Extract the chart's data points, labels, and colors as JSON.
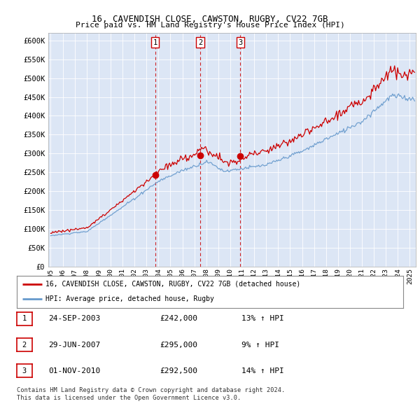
{
  "title": "16, CAVENDISH CLOSE, CAWSTON, RUGBY, CV22 7GB",
  "subtitle": "Price paid vs. HM Land Registry's House Price Index (HPI)",
  "background_color": "#dce6f5",
  "plot_bg_color": "#dce6f5",
  "ylabel_ticks": [
    "£0",
    "£50K",
    "£100K",
    "£150K",
    "£200K",
    "£250K",
    "£300K",
    "£350K",
    "£400K",
    "£450K",
    "£500K",
    "£550K",
    "£600K"
  ],
  "ytick_values": [
    0,
    50000,
    100000,
    150000,
    200000,
    250000,
    300000,
    350000,
    400000,
    450000,
    500000,
    550000,
    600000
  ],
  "ylim": [
    0,
    620000
  ],
  "xlim_start": 1994.8,
  "xlim_end": 2025.5,
  "transactions": [
    {
      "label": "1",
      "date_num": 2003.73,
      "price": 242000,
      "pct": "13%",
      "date_str": "24-SEP-2003"
    },
    {
      "label": "2",
      "date_num": 2007.49,
      "price": 295000,
      "pct": "9%",
      "date_str": "29-JUN-2007"
    },
    {
      "label": "3",
      "date_num": 2010.84,
      "price": 292500,
      "pct": "14%",
      "date_str": "01-NOV-2010"
    }
  ],
  "legend_entries": [
    {
      "label": "16, CAVENDISH CLOSE, CAWSTON, RUGBY, CV22 7GB (detached house)",
      "color": "#cc0000"
    },
    {
      "label": "HPI: Average price, detached house, Rugby",
      "color": "#6699cc"
    }
  ],
  "table_rows": [
    [
      "1",
      "24-SEP-2003",
      "£242,000",
      "13% ↑ HPI"
    ],
    [
      "2",
      "29-JUN-2007",
      "£295,000",
      "9% ↑ HPI"
    ],
    [
      "3",
      "01-NOV-2010",
      "£292,500",
      "14% ↑ HPI"
    ]
  ],
  "footer": "Contains HM Land Registry data © Crown copyright and database right 2024.\nThis data is licensed under the Open Government Licence v3.0.",
  "red_color": "#cc0000",
  "blue_color": "#6699cc",
  "dashed_color": "#cc0000",
  "grid_color": "#ffffff"
}
